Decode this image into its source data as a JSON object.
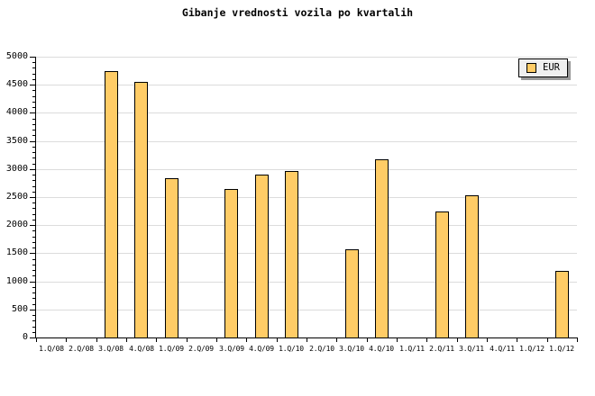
{
  "title": "Gibanje vrednosti vozila po kvartalih",
  "legend": {
    "label": "EUR",
    "swatch_color": "#FFCC66"
  },
  "colors": {
    "background": "#FFFFFF",
    "bar_fill": "#FFCC66",
    "bar_border": "#000000",
    "gridline": "#DCDCDC",
    "axis": "#000000",
    "legend_bg": "#EFEFEF",
    "legend_shadow": "#999999"
  },
  "y_axis": {
    "tick_labels": [
      "0",
      "500",
      "1000",
      "1500",
      "2000",
      "2500",
      "3000",
      "3500",
      "4000",
      "4500",
      "5000"
    ]
  },
  "x_axis": {
    "tick_labels": [
      "1.Q/08",
      "2.Q/08",
      "3.Q/08",
      "4.Q/08",
      "1.Q/09",
      "2.Q/09",
      "3.Q/09",
      "4.Q/09",
      "1.Q/10",
      "2.Q/10",
      "3.Q/10",
      "4.Q/10",
      "1.Q/11",
      "2.Q/11",
      "3.Q/11",
      "4.Q/11",
      "1.Q/12",
      "1.Q/12"
    ]
  },
  "chart_data": {
    "type": "bar",
    "title": "Gibanje vrednosti vozila po kvartalih",
    "series": [
      {
        "name": "EUR",
        "values": [
          null,
          null,
          4750,
          4550,
          2840,
          null,
          2650,
          2900,
          2960,
          null,
          1570,
          3170,
          null,
          2250,
          2530,
          null,
          null,
          1190
        ]
      }
    ],
    "categories": [
      "1.Q/08",
      "2.Q/08",
      "3.Q/08",
      "4.Q/08",
      "1.Q/09",
      "2.Q/09",
      "3.Q/09",
      "4.Q/09",
      "1.Q/10",
      "2.Q/10",
      "3.Q/10",
      "4.Q/10",
      "1.Q/11",
      "2.Q/11",
      "3.Q/11",
      "4.Q/11",
      "1.Q/12",
      "1.Q/12"
    ],
    "xlabel": "",
    "ylabel": "",
    "ylim": [
      0,
      5000
    ],
    "ytick_step": 500,
    "y_minor_tick_step": 100,
    "grid": "horizontal",
    "legend_position": "top-right"
  }
}
